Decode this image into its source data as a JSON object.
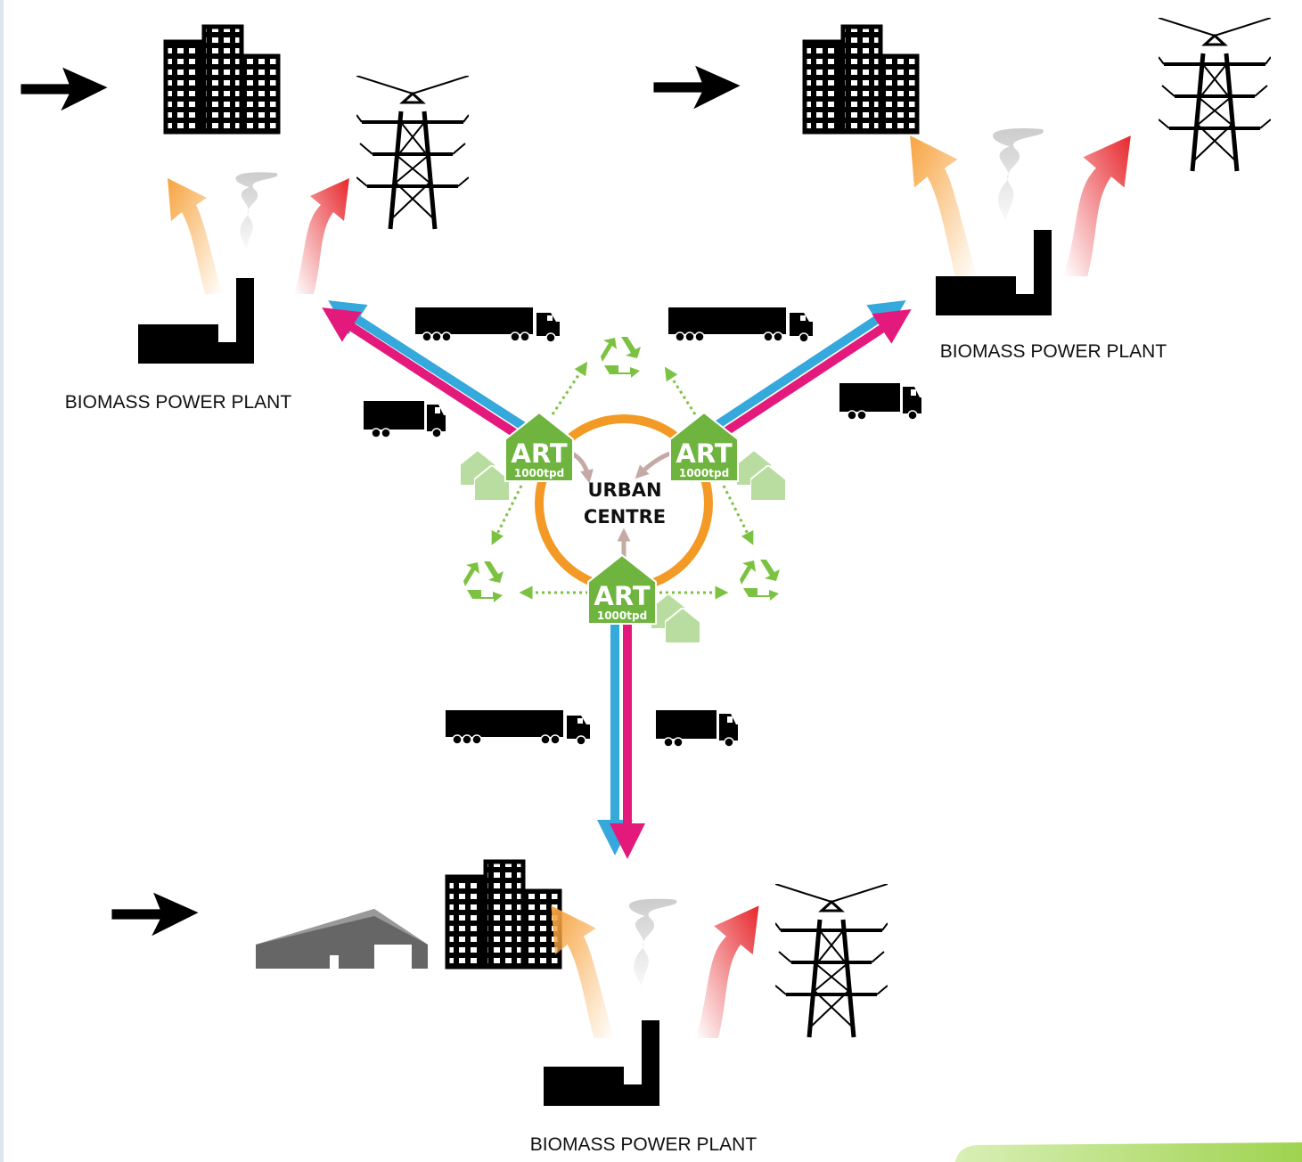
{
  "centre": {
    "lines": [
      "URBAN",
      "CENTRE"
    ]
  },
  "art_units": [
    {
      "label": "ART",
      "capacity": "1000tpd"
    },
    {
      "label": "ART",
      "capacity": "1000tpd"
    },
    {
      "label": "ART",
      "capacity": "1000tpd"
    }
  ],
  "plants": [
    {
      "label": "BIOMASS POWER PLANT"
    },
    {
      "label": "BIOMASS POWER PLANT"
    },
    {
      "label": "BIOMASS POWER PLANT"
    }
  ]
}
